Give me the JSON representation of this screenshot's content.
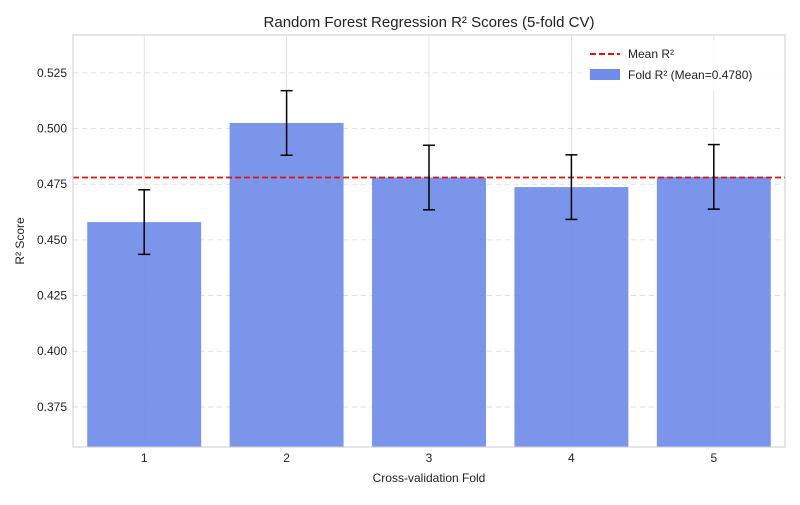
{
  "chart_data": {
    "type": "bar",
    "title": "Random Forest Regression R² Scores (5-fold CV)",
    "xlabel": "Cross-validation Fold",
    "ylabel": "R² Score",
    "categories": [
      "1",
      "2",
      "3",
      "4",
      "5"
    ],
    "series": [
      {
        "name": "Fold R² (Mean=0.4780)",
        "values": [
          0.458,
          0.5025,
          0.478,
          0.4737,
          0.4783
        ],
        "error": [
          0.0145,
          0.0145,
          0.0145,
          0.0145,
          0.0145
        ],
        "color": "#6f8ce8"
      }
    ],
    "mean_line": {
      "name": "Mean R²",
      "value": 0.478,
      "color": "#dd1111",
      "style": "dashed"
    },
    "ylim": [
      0.357,
      0.542
    ],
    "yticks": [
      "0.375",
      "0.400",
      "0.425",
      "0.450",
      "0.475",
      "0.500",
      "0.525"
    ],
    "grid": true,
    "legend_position": "top-right",
    "colors": {
      "bar": "#6f8ce8",
      "error_bar": "#000000",
      "mean_line": "#dd1111",
      "grid": "#d9d9d9",
      "axis": "#cccccc",
      "text": "#222222"
    }
  }
}
